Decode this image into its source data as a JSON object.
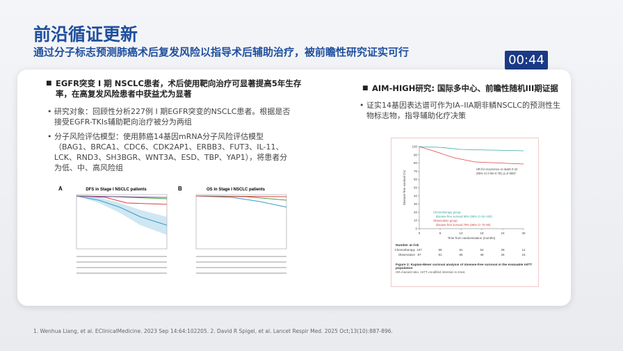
{
  "header": {
    "title": "前沿循证更新",
    "subtitle": "通过分子标志预测肺癌术后复发风险以指导术后辅助治疗，被前瞻性研究证实可行"
  },
  "timer": "00:44",
  "left": {
    "heading": "EGFR突变 I 期 NSCLC患者，术后使用靶向治疗可显著提高5年生存率，在高复发风险患者中获益尤为显著",
    "bullets": [
      "研究对象：回顾性分析227例 I 期EGFR突变的NSCLC患者。根据是否接受EGFR-TKIs辅助靶向治疗被分为两组",
      "分子风险评估模型：使用肺癌14基因mRNA分子风险评估模型（BAG1、BRCA1、CDC6、CDK2AP1、ERBB3、FUT3、IL-11、LCK、RND3、SH3BGR、WNT3A、ESD、TBP、YAP1），将患者分为低、中、高风险组"
    ],
    "panels": [
      {
        "label": "A",
        "title": "DFS in Stage I NSCLC patients"
      },
      {
        "label": "B",
        "title": "OS in Stage I NSCLC patients"
      }
    ]
  },
  "right": {
    "heading": "AIM-HIGH研究: 国际多中心、前瞻性随机III期证据",
    "bullets": [
      "证实14基因表达谱可作为IA–IIA期非鳞NSCLC的预测性生物标志物，指导辅助化疗决策"
    ],
    "figure": {
      "y_label": "Disease-free survival (%)",
      "x_label": "Time from randomisation (months)",
      "yticks": [
        0,
        10,
        20,
        30,
        40,
        50,
        60,
        70,
        80,
        90,
        100
      ],
      "xticks": [
        0,
        6,
        12,
        18,
        24,
        30
      ],
      "hr": [
        "HR for recurrence or death 0·22",
        "(95% CI 0·06–0·78); p=0·0087"
      ],
      "legend": [
        "Chemotherapy group:",
        "disease-free survival 95% (95% CI 92–100)",
        "Observation group:",
        "disease-free survival 79% (95% CI 70–90)"
      ],
      "at_risk_title": "Number at risk",
      "at_risk": [
        {
          "name": "Chemotherapy",
          "values": [
            107,
            99,
            81,
            54,
            28,
            14
          ]
        },
        {
          "name": "Observation",
          "values": [
            87,
            81,
            65,
            48,
            26,
            15
          ]
        }
      ],
      "caption": "Figure 2: Kaplan-Meier survival analysis of disease-free survival in the evaluable mITT population",
      "note": "HR=hazard ratio. mITT=modified intention to treat."
    }
  },
  "footer": "1. Wenhua Liang, et al. EClinicalMedicine. 2023 Sep 14:64:102205. 2. David R Spigel, et al. Lancet Respir Med. 2025 Oct;13(10):887-896."
}
